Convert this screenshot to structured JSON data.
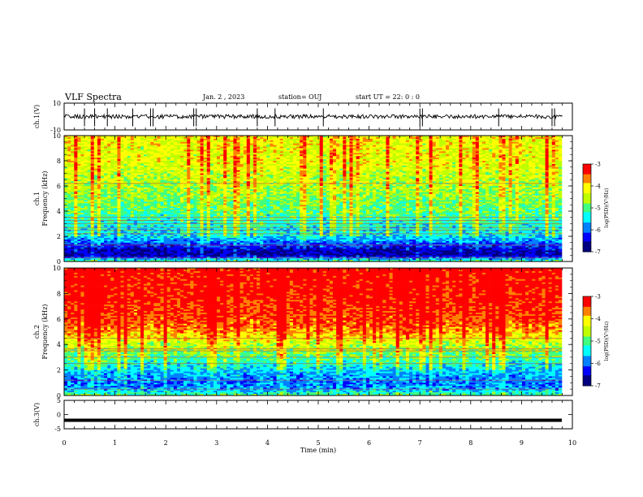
{
  "header": {
    "title": "VLF Spectra",
    "date": "Jan. 2 , 2023",
    "station": "station= OUJ",
    "start_ut": "start UT = 22: 0 : 0"
  },
  "colors": {
    "colormap": [
      "#000080",
      "#0000ff",
      "#0080ff",
      "#00ffff",
      "#40ff80",
      "#c0ff00",
      "#ffff00",
      "#ff8000",
      "#ff0000"
    ],
    "waveform": "#000000"
  },
  "chart_data": [
    {
      "type": "line",
      "panel": "ch1-waveform",
      "ylabel": "ch.1(V)",
      "ylim": [
        -10,
        10
      ],
      "yticks": [
        "10",
        "-10"
      ],
      "xlim": [
        0,
        10
      ],
      "baseline_value": 0,
      "spike_times_min": [
        0.4,
        0.6,
        0.85,
        1.35,
        1.7,
        1.75,
        2.55,
        2.6,
        3.8,
        4.15,
        5.1,
        7.0,
        7.05,
        8.55,
        9.6,
        9.65
      ],
      "grid": false
    },
    {
      "type": "heatmap",
      "panel": "ch1-spectrogram",
      "ylabel": "ch.1\nFrequency (kHz)",
      "ylim": [
        0,
        10
      ],
      "yticks": [
        "0",
        "2",
        "4",
        "6",
        "8",
        "10"
      ],
      "xlim": [
        0,
        9.8
      ],
      "colorbar": {
        "label": "log(PSD)(V²/Hz)",
        "range": [
          -7,
          -3
        ],
        "ticks": [
          "-3",
          "-4",
          "-5",
          "-6",
          "-7"
        ]
      },
      "profile_khz": [
        0,
        0.5,
        1,
        1.5,
        2,
        3,
        4,
        5,
        6,
        8,
        10
      ],
      "profile_log_psd": [
        -5.0,
        -6.8,
        -6.5,
        -6.0,
        -5.5,
        -5.3,
        -5.0,
        -4.8,
        -4.6,
        -4.3,
        -4.2
      ],
      "line_frequencies_khz": [
        0.3,
        1.3,
        2.2,
        2.5,
        2.7,
        3.0,
        3.25,
        3.5,
        6.2
      ],
      "grid": false
    },
    {
      "type": "heatmap",
      "panel": "ch2-spectrogram",
      "ylabel": "ch.2\nFrequency (kHz)",
      "ylim": [
        0,
        10
      ],
      "yticks": [
        "0",
        "2",
        "4",
        "6",
        "8",
        "10"
      ],
      "xlim": [
        0,
        9.8
      ],
      "colorbar": {
        "label": "log(PSD)(V²/Hz)",
        "range": [
          -7,
          -3
        ],
        "ticks": [
          "-3",
          "-4",
          "-5",
          "-6",
          "-7"
        ]
      },
      "profile_khz": [
        0,
        0.5,
        1,
        1.5,
        2,
        3,
        4,
        5,
        6,
        8,
        10
      ],
      "profile_log_psd": [
        -5.0,
        -5.8,
        -6.0,
        -5.8,
        -5.6,
        -5.0,
        -4.5,
        -3.8,
        -3.4,
        -3.2,
        -3.1
      ],
      "line_frequencies_khz": [
        0.5,
        1.2,
        2.5,
        3.0,
        3.5,
        3.65,
        4.5
      ],
      "grid": false
    },
    {
      "type": "line",
      "panel": "ch3-waveform",
      "ylabel": "ch.3(V)",
      "ylim": [
        -5,
        5
      ],
      "yticks": [
        "5",
        "0",
        "-5"
      ],
      "xlim": [
        0,
        10
      ],
      "xlabel": "Time (min)",
      "xticks": [
        "0",
        "1",
        "2",
        "3",
        "4",
        "5",
        "6",
        "7",
        "8",
        "9",
        "10"
      ],
      "baseline_value": -2,
      "grid": false
    }
  ]
}
